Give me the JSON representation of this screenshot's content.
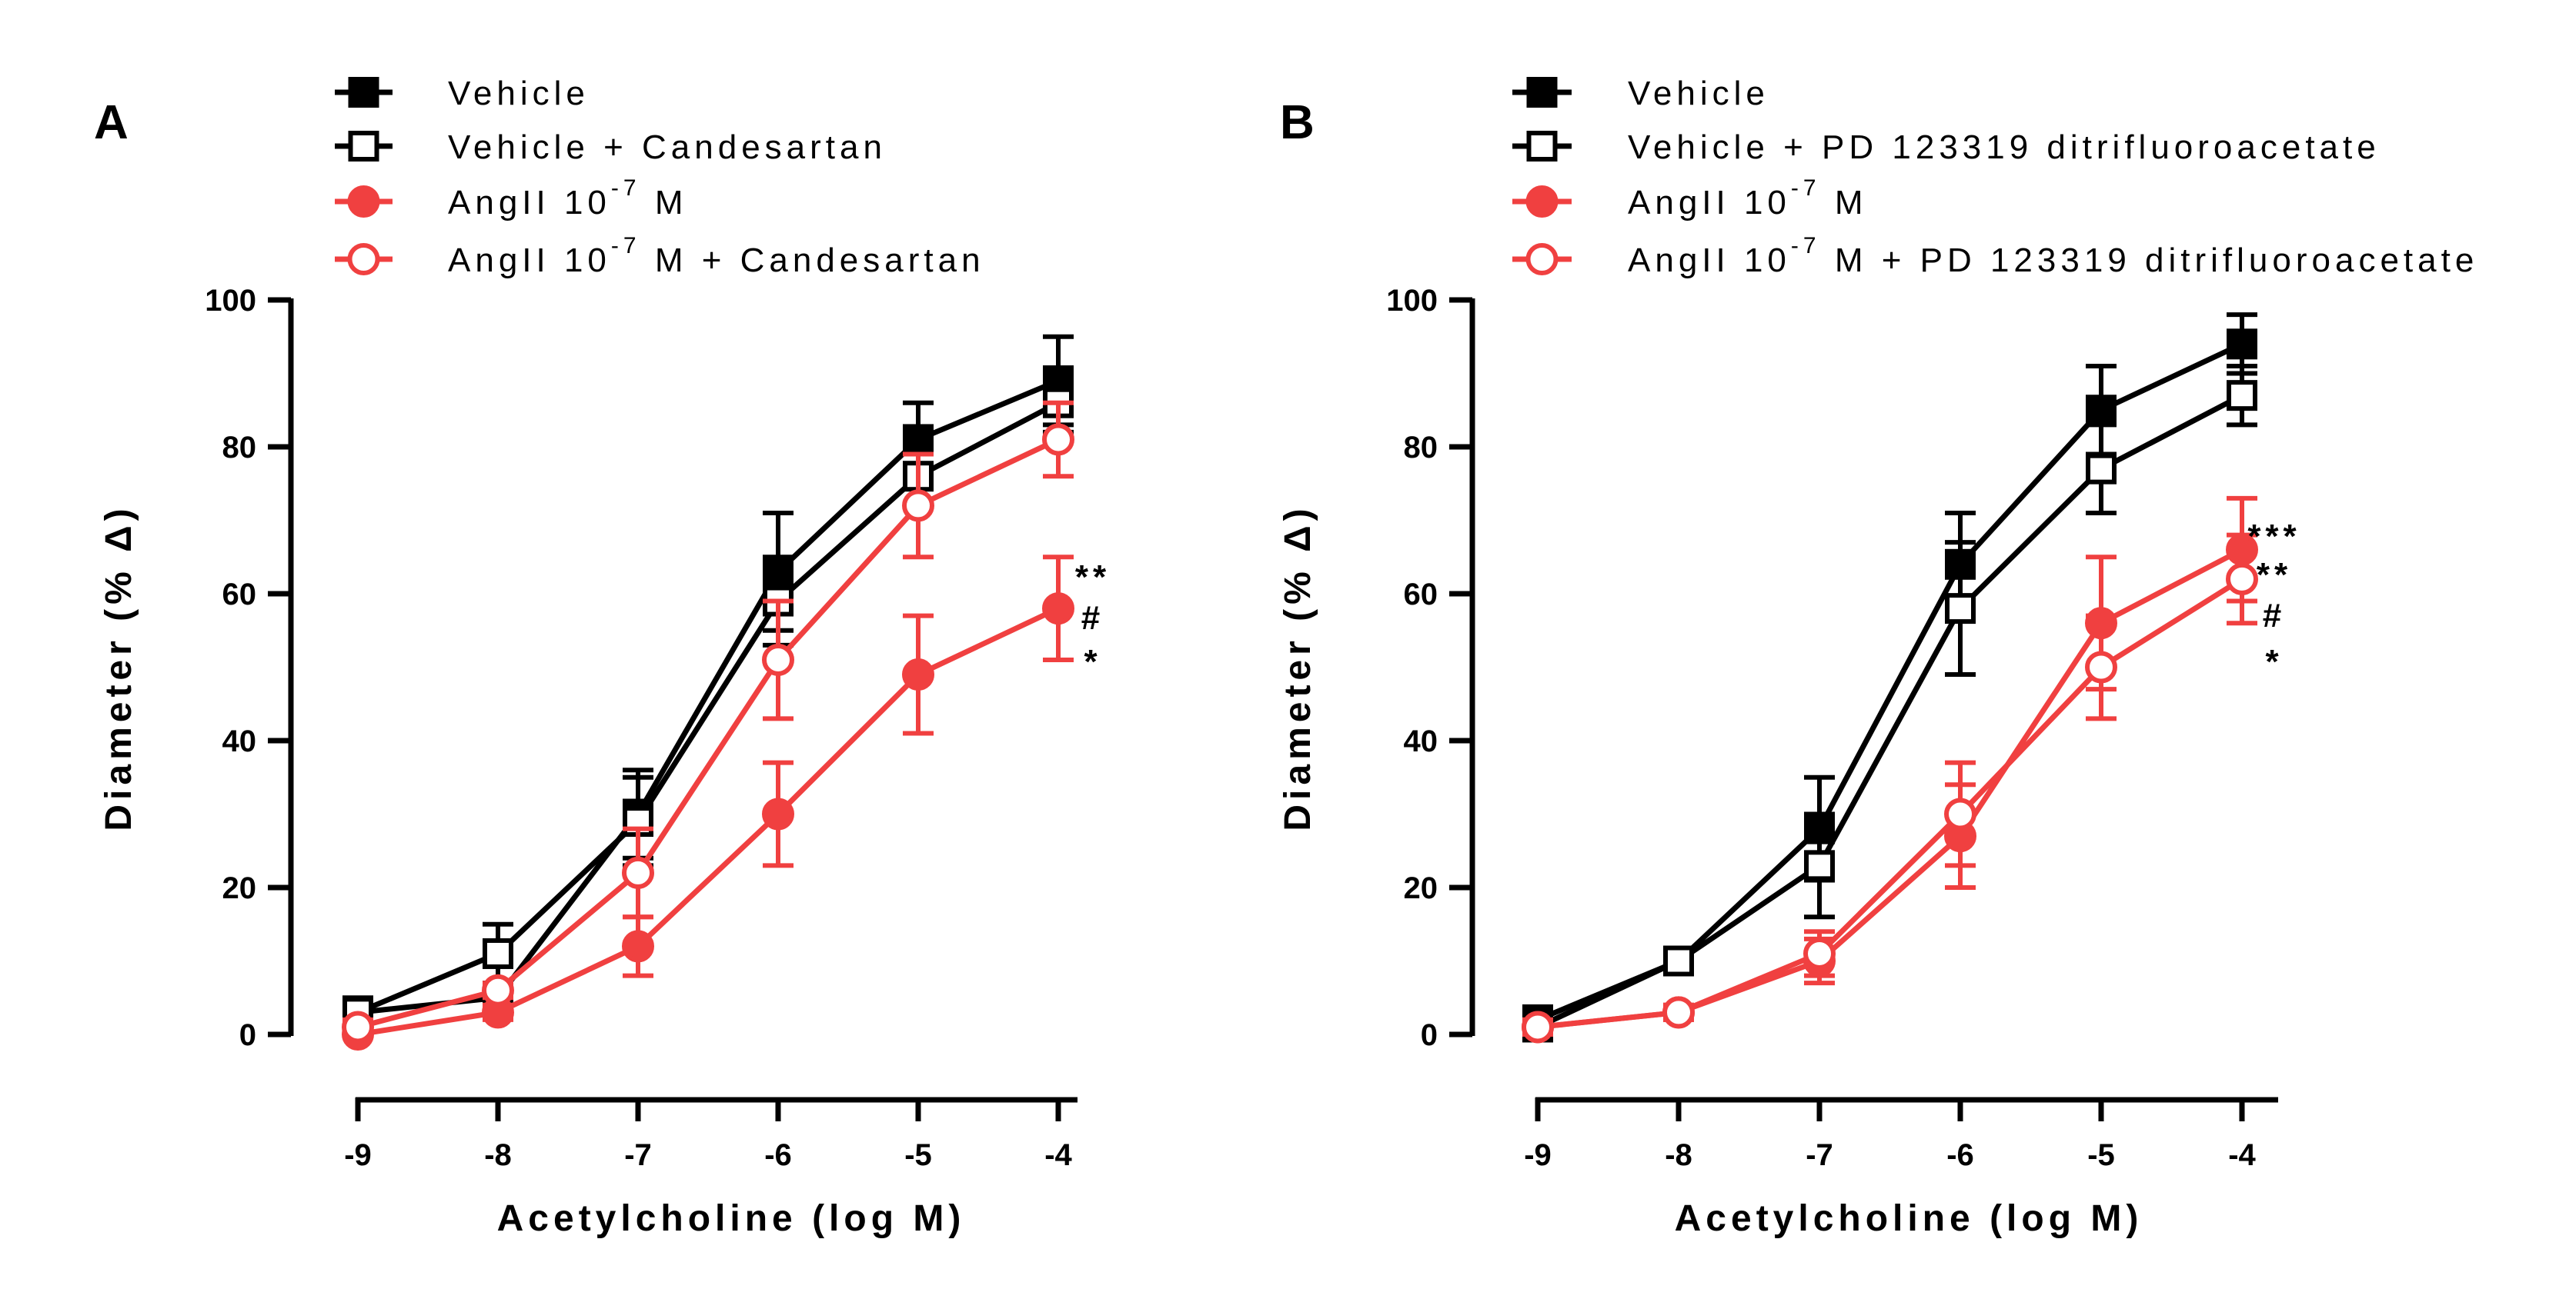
{
  "chart_data": [
    {
      "panel": "A",
      "type": "line",
      "xlabel": "Acetylcholine (log M)",
      "ylabel": "Diameter (% Δ)",
      "x": [
        -9,
        -8,
        -7,
        -6,
        -5,
        -4
      ],
      "x_ticks": [
        "-9",
        "-8",
        "-7",
        "-6",
        "-5",
        "-4"
      ],
      "ylim": [
        0,
        100
      ],
      "y_ticks": [
        "0",
        "20",
        "40",
        "60",
        "80",
        "100"
      ],
      "legend": "top-left",
      "series": [
        {
          "name": "Vehicle",
          "name_pre": "Vehicle",
          "sup": "",
          "name_post": "",
          "color": "#000000",
          "marker": "square",
          "filled": true,
          "values": [
            3,
            5,
            30,
            63,
            81,
            89
          ],
          "errors": [
            2,
            2,
            6,
            8,
            5,
            6
          ]
        },
        {
          "name": "Vehicle + Candesartan",
          "name_pre": "Vehicle + Candesartan",
          "sup": "",
          "name_post": "",
          "color": "#000000",
          "marker": "square",
          "filled": false,
          "values": [
            3,
            11,
            29,
            59,
            76,
            86
          ],
          "errors": [
            1,
            4,
            6,
            6,
            4,
            4
          ]
        },
        {
          "name": "AngII 10-7 M",
          "name_pre": "AngII 10",
          "sup": "-7",
          "name_post": " M",
          "color": "#f04040",
          "marker": "circle",
          "filled": true,
          "values": [
            0,
            3,
            12,
            30,
            49,
            58
          ],
          "errors": [
            1,
            1,
            4,
            7,
            8,
            7
          ]
        },
        {
          "name": "AngII 10-7 M + Candesartan",
          "name_pre": "AngII 10",
          "sup": "-7",
          "name_post": " M + Candesartan",
          "color": "#f04040",
          "marker": "circle",
          "filled": false,
          "values": [
            1,
            6,
            22,
            51,
            72,
            81
          ],
          "errors": [
            1,
            1,
            6,
            8,
            7,
            5
          ]
        }
      ],
      "annotations": [
        {
          "text": "**",
          "near_x": -4,
          "near_y": 62
        },
        {
          "text": "#",
          "near_x": -4,
          "near_y": 57
        },
        {
          "text": "*",
          "near_x": -4,
          "near_y": 50
        }
      ]
    },
    {
      "panel": "B",
      "type": "line",
      "xlabel": "Acetylcholine (log M)",
      "ylabel": "Diameter (% Δ)",
      "x": [
        -9,
        -8,
        -7,
        -6,
        -5,
        -4
      ],
      "x_ticks": [
        "-9",
        "-8",
        "-7",
        "-6",
        "-5",
        "-4"
      ],
      "ylim": [
        0,
        100
      ],
      "y_ticks": [
        "0",
        "20",
        "40",
        "60",
        "80",
        "100"
      ],
      "legend": "top-left",
      "series": [
        {
          "name": "Vehicle",
          "name_pre": "Vehicle",
          "sup": "",
          "name_post": "",
          "color": "#000000",
          "marker": "square",
          "filled": true,
          "values": [
            2,
            10,
            28,
            64,
            85,
            94
          ],
          "errors": [
            1,
            1,
            7,
            7,
            6,
            4
          ]
        },
        {
          "name": "Vehicle + PD 123319 ditrifluoroacetate",
          "name_pre": "Vehicle + PD 123319 ditrifluoroacetate",
          "sup": "",
          "name_post": "",
          "color": "#000000",
          "marker": "square",
          "filled": false,
          "values": [
            1,
            10,
            23,
            58,
            77,
            87
          ],
          "errors": [
            1,
            1,
            7,
            9,
            6,
            4
          ]
        },
        {
          "name": "AngII 10-7 M",
          "name_pre": "AngII 10",
          "sup": "-7",
          "name_post": " M",
          "color": "#f04040",
          "marker": "circle",
          "filled": true,
          "values": [
            1,
            3,
            10,
            27,
            56,
            66
          ],
          "errors": [
            1,
            1,
            3,
            7,
            9,
            7
          ]
        },
        {
          "name": "AngII 10-7 M + PD 123319 ditrifluoroacetate",
          "name_pre": "AngII 10",
          "sup": "-7",
          "name_post": " M + PD 123319 ditrifluoroacetate",
          "color": "#f04040",
          "marker": "circle",
          "filled": false,
          "values": [
            1,
            3,
            11,
            30,
            50,
            62
          ],
          "errors": [
            1,
            1,
            3,
            7,
            7,
            6
          ]
        }
      ],
      "annotations": [
        {
          "text": "***",
          "near_x": -4,
          "near_y": 66
        },
        {
          "text": "**",
          "near_x": -4,
          "near_y": 61
        },
        {
          "text": "#",
          "near_x": -4,
          "near_y": 56
        },
        {
          "text": "*",
          "near_x": -4,
          "near_y": 50
        }
      ]
    }
  ]
}
